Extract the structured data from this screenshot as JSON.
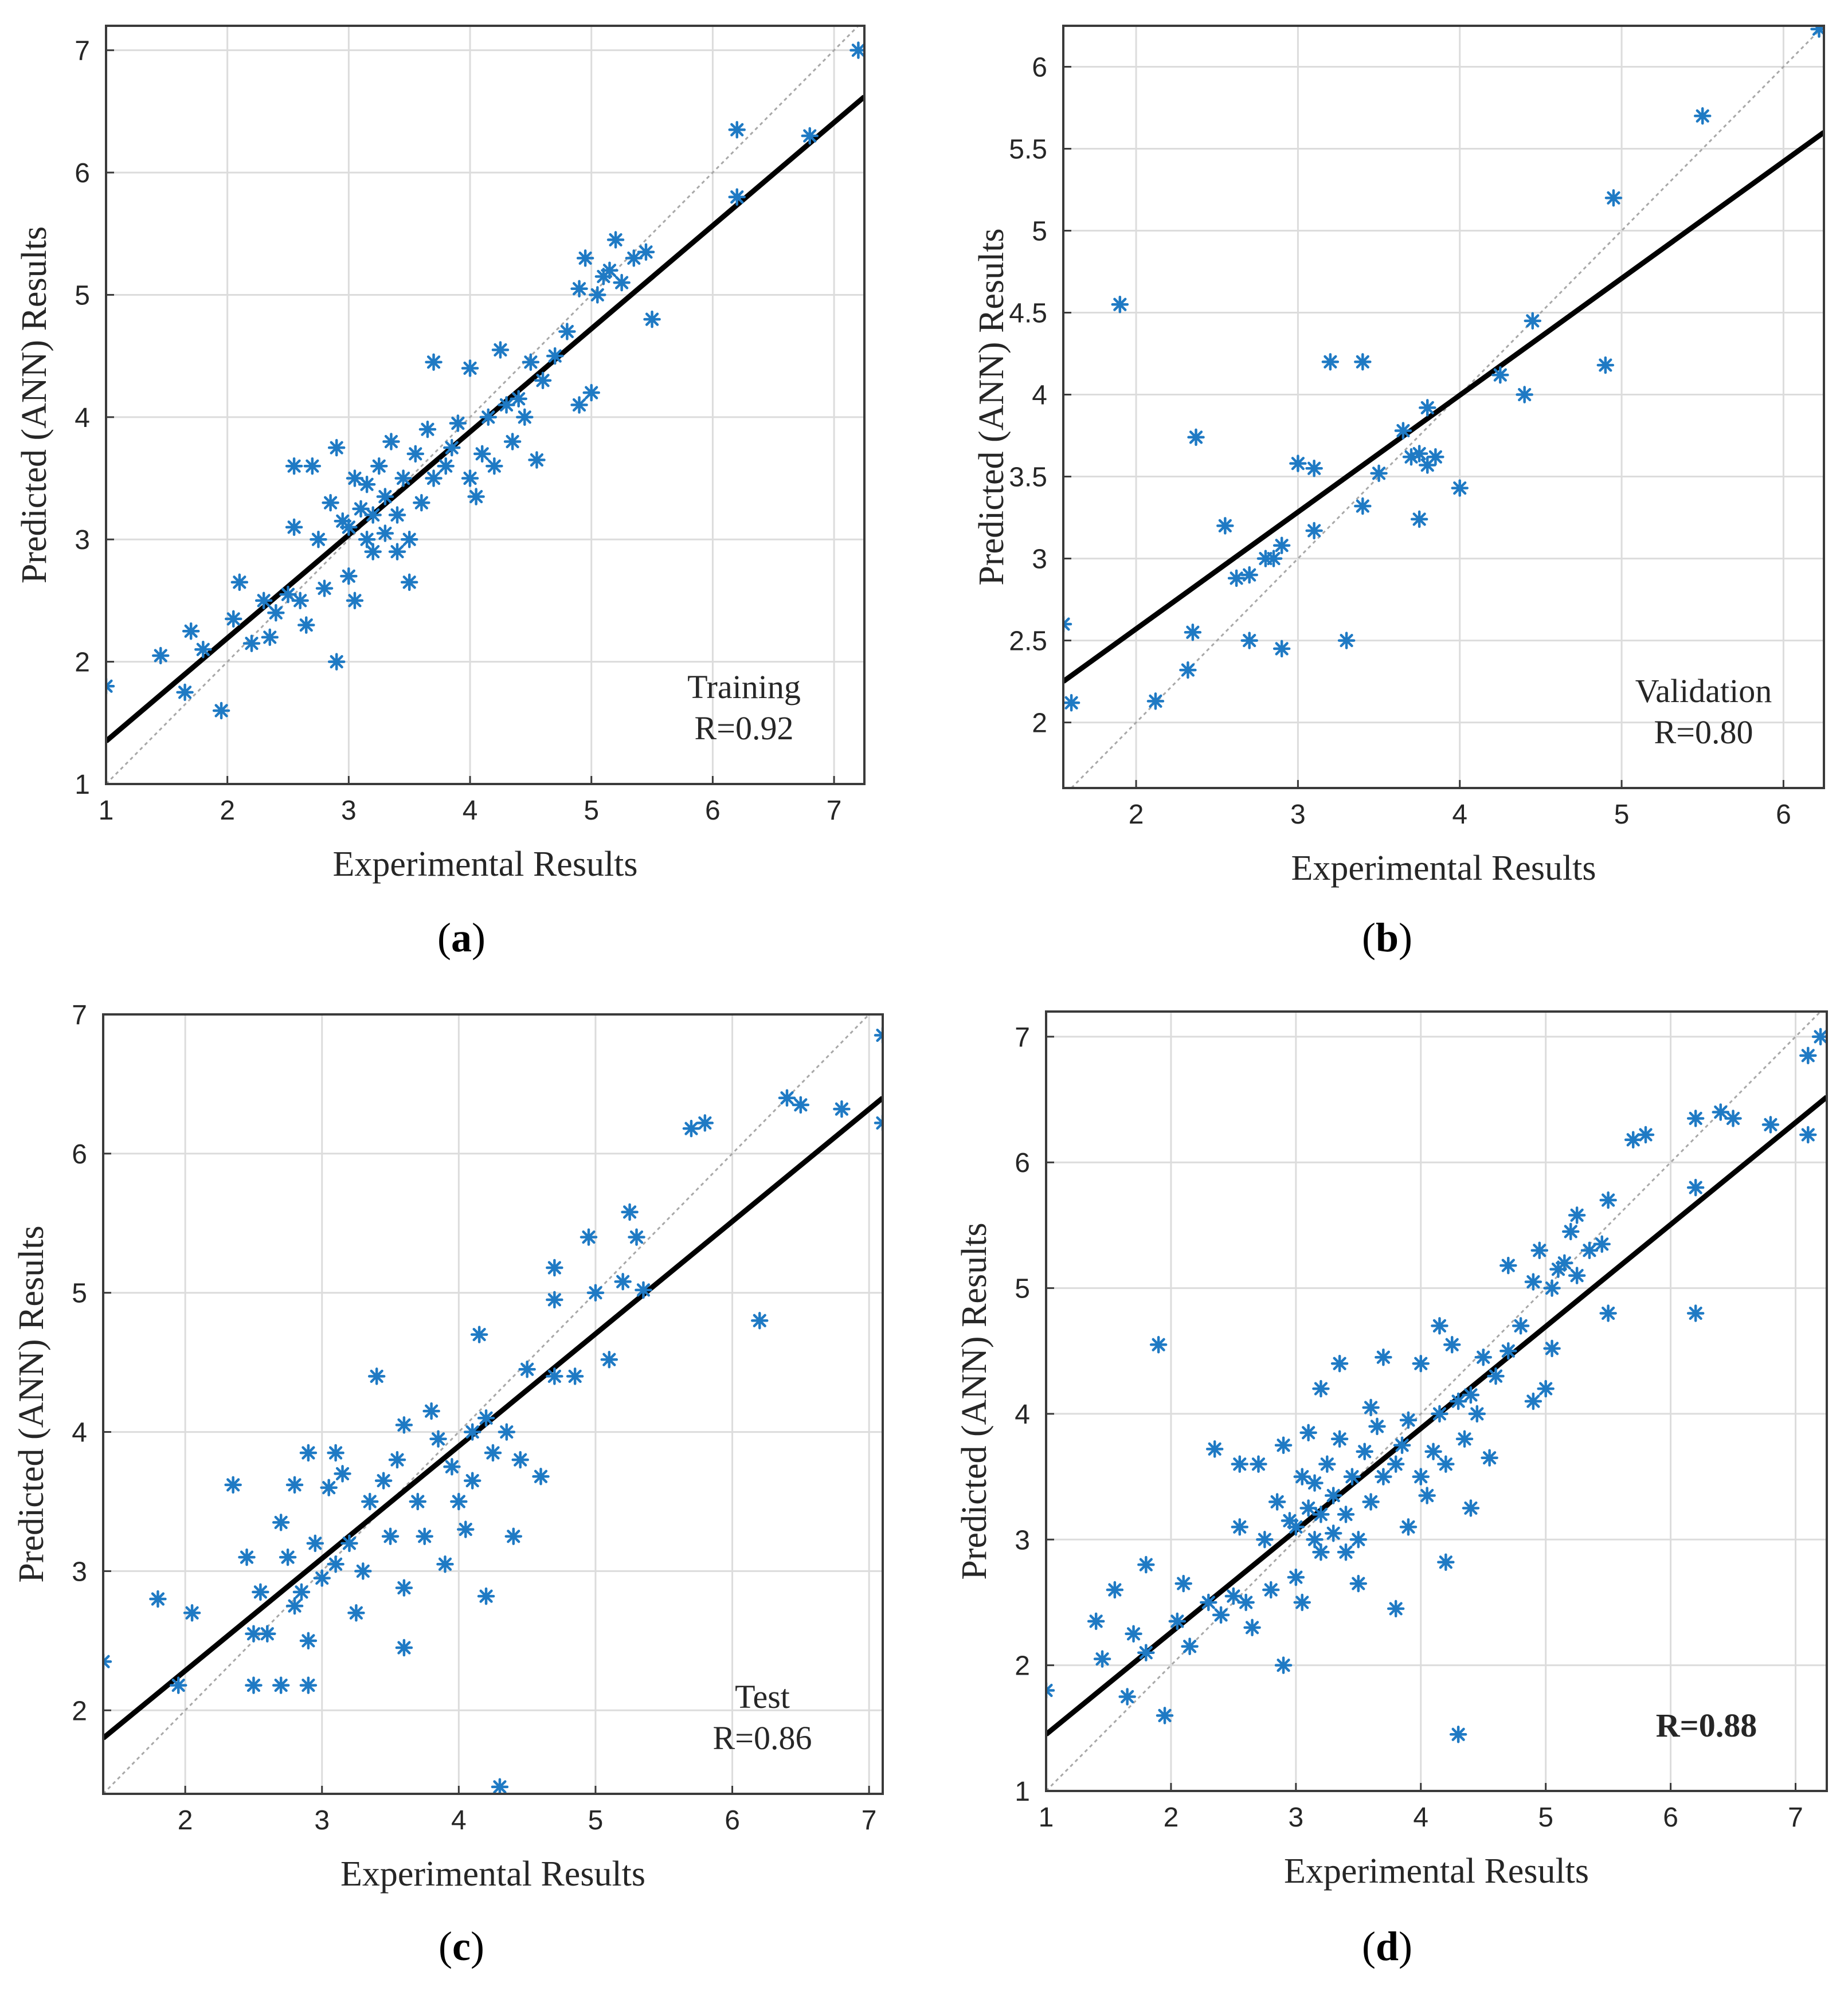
{
  "figure": {
    "panels": [
      "a",
      "b",
      "c",
      "d"
    ]
  },
  "chart_data": [
    {
      "id": "a",
      "type": "scatter",
      "caption_letter": "a",
      "annotation": [
        "Training",
        "R=0.92"
      ],
      "annotation_bold": false,
      "xlabel": "Experimental Results",
      "ylabel": "Predicted (ANN) Results",
      "xlim": [
        1,
        7.25
      ],
      "ylim": [
        1,
        7.2
      ],
      "xticks": [
        1,
        2,
        3,
        4,
        5,
        6,
        7
      ],
      "yticks": [
        1,
        2,
        3,
        4,
        5,
        6,
        7
      ],
      "grid": true,
      "fit_line": {
        "x": [
          1,
          7.25
        ],
        "y": [
          1.35,
          6.62
        ]
      },
      "ideal_line": true,
      "marker_color": "#1f7ac4",
      "points": [
        [
          1.0,
          1.8
        ],
        [
          1.45,
          2.05
        ],
        [
          1.65,
          1.75
        ],
        [
          1.7,
          2.25
        ],
        [
          1.8,
          2.1
        ],
        [
          1.95,
          1.6
        ],
        [
          2.05,
          2.35
        ],
        [
          2.1,
          2.65
        ],
        [
          2.2,
          2.15
        ],
        [
          2.3,
          2.5
        ],
        [
          2.35,
          2.2
        ],
        [
          2.4,
          2.4
        ],
        [
          2.5,
          2.55
        ],
        [
          2.55,
          3.6
        ],
        [
          2.55,
          3.1
        ],
        [
          2.6,
          2.5
        ],
        [
          2.65,
          2.3
        ],
        [
          2.7,
          3.6
        ],
        [
          2.75,
          3.0
        ],
        [
          2.8,
          2.6
        ],
        [
          2.85,
          3.3
        ],
        [
          2.9,
          2.0
        ],
        [
          2.9,
          3.75
        ],
        [
          2.95,
          3.15
        ],
        [
          3.0,
          2.7
        ],
        [
          3.0,
          3.1
        ],
        [
          3.05,
          3.5
        ],
        [
          3.05,
          2.5
        ],
        [
          3.1,
          3.25
        ],
        [
          3.15,
          3.45
        ],
        [
          3.15,
          3.0
        ],
        [
          3.2,
          3.2
        ],
        [
          3.2,
          2.9
        ],
        [
          3.25,
          3.6
        ],
        [
          3.3,
          3.35
        ],
        [
          3.3,
          3.05
        ],
        [
          3.35,
          3.8
        ],
        [
          3.4,
          3.2
        ],
        [
          3.4,
          2.9
        ],
        [
          3.45,
          3.5
        ],
        [
          3.5,
          3.0
        ],
        [
          3.5,
          2.65
        ],
        [
          3.55,
          3.7
        ],
        [
          3.6,
          3.3
        ],
        [
          3.65,
          3.9
        ],
        [
          3.7,
          4.45
        ],
        [
          3.7,
          3.5
        ],
        [
          3.8,
          3.6
        ],
        [
          3.85,
          3.75
        ],
        [
          3.9,
          3.95
        ],
        [
          4.0,
          4.4
        ],
        [
          4.0,
          3.5
        ],
        [
          4.05,
          3.35
        ],
        [
          4.1,
          3.7
        ],
        [
          4.15,
          4.0
        ],
        [
          4.2,
          3.6
        ],
        [
          4.25,
          4.55
        ],
        [
          4.3,
          4.1
        ],
        [
          4.35,
          3.8
        ],
        [
          4.4,
          4.15
        ],
        [
          4.45,
          4.0
        ],
        [
          4.5,
          4.45
        ],
        [
          4.55,
          3.65
        ],
        [
          4.6,
          4.3
        ],
        [
          4.7,
          4.5
        ],
        [
          4.8,
          4.7
        ],
        [
          4.9,
          4.1
        ],
        [
          4.9,
          5.05
        ],
        [
          4.95,
          5.3
        ],
        [
          5.0,
          4.2
        ],
        [
          5.05,
          5.0
        ],
        [
          5.1,
          5.15
        ],
        [
          5.15,
          5.2
        ],
        [
          5.2,
          5.45
        ],
        [
          5.25,
          5.1
        ],
        [
          5.35,
          5.3
        ],
        [
          5.45,
          5.35
        ],
        [
          5.5,
          4.8
        ],
        [
          6.2,
          6.35
        ],
        [
          6.2,
          5.8
        ],
        [
          6.8,
          6.3
        ],
        [
          7.2,
          7.0
        ]
      ]
    },
    {
      "id": "b",
      "type": "scatter",
      "caption_letter": "b",
      "annotation": [
        "Validation",
        "R=0.80"
      ],
      "annotation_bold": false,
      "xlabel": "Experimental Results",
      "ylabel": "Predicted (ANN) Results",
      "xlim": [
        1.55,
        6.25
      ],
      "ylim": [
        1.6,
        6.25
      ],
      "xticks": [
        2,
        3,
        4,
        5,
        6
      ],
      "yticks": [
        2,
        2.5,
        3,
        3.5,
        4,
        4.5,
        5,
        5.5,
        6
      ],
      "grid": true,
      "fit_line": {
        "x": [
          1.55,
          6.25
        ],
        "y": [
          2.25,
          5.6
        ]
      },
      "ideal_line": true,
      "marker_color": "#1f7ac4",
      "points": [
        [
          1.55,
          2.6
        ],
        [
          1.6,
          2.12
        ],
        [
          1.9,
          4.55
        ],
        [
          2.12,
          2.13
        ],
        [
          2.32,
          2.32
        ],
        [
          2.35,
          2.55
        ],
        [
          2.37,
          3.74
        ],
        [
          2.55,
          3.2
        ],
        [
          2.62,
          2.88
        ],
        [
          2.7,
          2.5
        ],
        [
          2.7,
          2.9
        ],
        [
          2.8,
          3.0
        ],
        [
          2.85,
          3.0
        ],
        [
          2.9,
          3.08
        ],
        [
          2.9,
          2.45
        ],
        [
          3.0,
          3.58
        ],
        [
          3.1,
          3.55
        ],
        [
          3.1,
          3.17
        ],
        [
          3.2,
          4.2
        ],
        [
          3.3,
          2.5
        ],
        [
          3.4,
          4.2
        ],
        [
          3.4,
          3.32
        ],
        [
          3.5,
          3.52
        ],
        [
          3.65,
          3.78
        ],
        [
          3.7,
          3.62
        ],
        [
          3.75,
          3.64
        ],
        [
          3.75,
          3.24
        ],
        [
          3.8,
          3.57
        ],
        [
          3.8,
          3.92
        ],
        [
          3.85,
          3.62
        ],
        [
          4.0,
          3.43
        ],
        [
          4.25,
          4.12
        ],
        [
          4.4,
          4.0
        ],
        [
          4.45,
          4.45
        ],
        [
          4.9,
          4.18
        ],
        [
          4.95,
          5.2
        ],
        [
          5.5,
          5.7
        ],
        [
          6.22,
          6.23
        ]
      ]
    },
    {
      "id": "c",
      "type": "scatter",
      "caption_letter": "c",
      "annotation": [
        "Test",
        "R=0.86"
      ],
      "annotation_bold": false,
      "xlabel": "Experimental Results",
      "ylabel": "Predicted (ANN) Results",
      "xlim": [
        1.4,
        7.1
      ],
      "ylim": [
        1.4,
        7.0
      ],
      "xticks": [
        2,
        3,
        4,
        5,
        6,
        7
      ],
      "yticks": [
        2,
        3,
        4,
        5,
        6,
        7
      ],
      "grid": true,
      "fit_line": {
        "x": [
          1.4,
          7.1
        ],
        "y": [
          1.8,
          6.4
        ]
      },
      "ideal_line": true,
      "marker_color": "#1f7ac4",
      "points": [
        [
          1.4,
          2.35
        ],
        [
          1.8,
          2.8
        ],
        [
          1.95,
          2.18
        ],
        [
          2.05,
          2.7
        ],
        [
          2.35,
          3.62
        ],
        [
          2.45,
          3.1
        ],
        [
          2.5,
          2.55
        ],
        [
          2.5,
          2.18
        ],
        [
          2.55,
          2.85
        ],
        [
          2.6,
          2.55
        ],
        [
          2.7,
          3.35
        ],
        [
          2.7,
          2.18
        ],
        [
          2.75,
          3.1
        ],
        [
          2.8,
          3.62
        ],
        [
          2.8,
          2.75
        ],
        [
          2.85,
          2.85
        ],
        [
          2.9,
          3.85
        ],
        [
          2.9,
          2.5
        ],
        [
          2.9,
          2.18
        ],
        [
          2.95,
          3.2
        ],
        [
          3.0,
          2.95
        ],
        [
          3.05,
          3.6
        ],
        [
          3.1,
          3.85
        ],
        [
          3.1,
          3.05
        ],
        [
          3.15,
          3.7
        ],
        [
          3.2,
          3.2
        ],
        [
          3.25,
          2.7
        ],
        [
          3.3,
          3.0
        ],
        [
          3.35,
          3.5
        ],
        [
          3.4,
          4.4
        ],
        [
          3.45,
          3.65
        ],
        [
          3.5,
          3.25
        ],
        [
          3.55,
          3.8
        ],
        [
          3.6,
          4.05
        ],
        [
          3.6,
          2.88
        ],
        [
          3.6,
          2.45
        ],
        [
          3.7,
          3.5
        ],
        [
          3.75,
          3.25
        ],
        [
          3.8,
          4.15
        ],
        [
          3.85,
          3.95
        ],
        [
          3.9,
          3.05
        ],
        [
          3.95,
          3.75
        ],
        [
          4.0,
          3.5
        ],
        [
          4.05,
          3.3
        ],
        [
          4.1,
          4.0
        ],
        [
          4.1,
          3.65
        ],
        [
          4.15,
          4.7
        ],
        [
          4.2,
          4.1
        ],
        [
          4.2,
          2.82
        ],
        [
          4.25,
          3.85
        ],
        [
          4.3,
          1.45
        ],
        [
          4.35,
          4.0
        ],
        [
          4.4,
          3.25
        ],
        [
          4.45,
          3.8
        ],
        [
          4.5,
          4.45
        ],
        [
          4.6,
          3.68
        ],
        [
          4.7,
          5.18
        ],
        [
          4.7,
          4.95
        ],
        [
          4.7,
          4.4
        ],
        [
          4.85,
          4.4
        ],
        [
          4.95,
          5.4
        ],
        [
          5.0,
          5.0
        ],
        [
          5.1,
          4.52
        ],
        [
          5.2,
          5.08
        ],
        [
          5.25,
          5.58
        ],
        [
          5.3,
          5.4
        ],
        [
          5.35,
          5.02
        ],
        [
          5.7,
          6.18
        ],
        [
          5.8,
          6.22
        ],
        [
          6.2,
          4.8
        ],
        [
          6.4,
          6.4
        ],
        [
          6.5,
          6.35
        ],
        [
          6.8,
          6.32
        ],
        [
          7.1,
          6.85
        ],
        [
          7.1,
          6.22
        ]
      ]
    },
    {
      "id": "d",
      "type": "scatter",
      "caption_letter": "d",
      "annotation": [
        "R=0.88"
      ],
      "annotation_bold": true,
      "xlabel": "Experimental Results",
      "ylabel": "Predicted (ANN) Results",
      "xlim": [
        1,
        7.25
      ],
      "ylim": [
        1,
        7.2
      ],
      "xticks": [
        1,
        2,
        3,
        4,
        5,
        6,
        7
      ],
      "yticks": [
        1,
        2,
        3,
        4,
        5,
        6,
        7
      ],
      "grid": true,
      "fit_line": {
        "x": [
          1,
          7.25
        ],
        "y": [
          1.45,
          6.52
        ]
      },
      "ideal_line": true,
      "marker_color": "#1f7ac4",
      "points": [
        [
          1.0,
          1.8
        ],
        [
          1.4,
          2.35
        ],
        [
          1.45,
          2.05
        ],
        [
          1.55,
          2.6
        ],
        [
          1.65,
          1.75
        ],
        [
          1.7,
          2.25
        ],
        [
          1.8,
          2.8
        ],
        [
          1.8,
          2.1
        ],
        [
          1.9,
          4.55
        ],
        [
          1.95,
          1.6
        ],
        [
          2.05,
          2.35
        ],
        [
          2.1,
          2.65
        ],
        [
          2.15,
          2.15
        ],
        [
          2.3,
          2.5
        ],
        [
          2.35,
          3.72
        ],
        [
          2.4,
          2.4
        ],
        [
          2.5,
          2.55
        ],
        [
          2.55,
          3.1
        ],
        [
          2.55,
          3.6
        ],
        [
          2.6,
          2.5
        ],
        [
          2.65,
          2.3
        ],
        [
          2.7,
          3.6
        ],
        [
          2.75,
          3.0
        ],
        [
          2.8,
          2.6
        ],
        [
          2.85,
          3.3
        ],
        [
          2.9,
          2.0
        ],
        [
          2.9,
          3.75
        ],
        [
          2.95,
          3.15
        ],
        [
          3.0,
          2.7
        ],
        [
          3.0,
          3.1
        ],
        [
          3.05,
          3.5
        ],
        [
          3.05,
          2.5
        ],
        [
          3.1,
          3.25
        ],
        [
          3.1,
          3.85
        ],
        [
          3.15,
          3.45
        ],
        [
          3.15,
          3.0
        ],
        [
          3.2,
          3.2
        ],
        [
          3.2,
          4.2
        ],
        [
          3.2,
          2.9
        ],
        [
          3.25,
          3.6
        ],
        [
          3.3,
          3.35
        ],
        [
          3.3,
          3.05
        ],
        [
          3.35,
          3.8
        ],
        [
          3.35,
          4.4
        ],
        [
          3.4,
          3.2
        ],
        [
          3.4,
          2.9
        ],
        [
          3.45,
          3.5
        ],
        [
          3.5,
          3.0
        ],
        [
          3.5,
          2.65
        ],
        [
          3.55,
          3.7
        ],
        [
          3.6,
          3.3
        ],
        [
          3.6,
          4.05
        ],
        [
          3.65,
          3.9
        ],
        [
          3.7,
          4.45
        ],
        [
          3.7,
          3.5
        ],
        [
          3.8,
          3.6
        ],
        [
          3.8,
          2.45
        ],
        [
          3.85,
          3.75
        ],
        [
          3.9,
          3.95
        ],
        [
          3.9,
          3.1
        ],
        [
          4.0,
          4.4
        ],
        [
          4.0,
          3.5
        ],
        [
          4.05,
          3.35
        ],
        [
          4.1,
          3.7
        ],
        [
          4.15,
          4.0
        ],
        [
          4.15,
          4.7
        ],
        [
          4.2,
          3.6
        ],
        [
          4.2,
          2.82
        ],
        [
          4.25,
          4.55
        ],
        [
          4.3,
          4.1
        ],
        [
          4.3,
          1.45
        ],
        [
          4.35,
          3.8
        ],
        [
          4.4,
          4.15
        ],
        [
          4.4,
          3.25
        ],
        [
          4.45,
          4.0
        ],
        [
          4.5,
          4.45
        ],
        [
          4.55,
          3.65
        ],
        [
          4.6,
          4.3
        ],
        [
          4.7,
          4.5
        ],
        [
          4.7,
          5.18
        ],
        [
          4.8,
          4.7
        ],
        [
          4.9,
          4.1
        ],
        [
          4.9,
          5.05
        ],
        [
          4.95,
          5.3
        ],
        [
          5.0,
          4.2
        ],
        [
          5.05,
          5.0
        ],
        [
          5.05,
          4.52
        ],
        [
          5.1,
          5.15
        ],
        [
          5.15,
          5.2
        ],
        [
          5.2,
          5.45
        ],
        [
          5.25,
          5.58
        ],
        [
          5.25,
          5.1
        ],
        [
          5.35,
          5.3
        ],
        [
          5.45,
          5.35
        ],
        [
          5.5,
          4.8
        ],
        [
          5.5,
          5.7
        ],
        [
          5.7,
          6.18
        ],
        [
          5.8,
          6.22
        ],
        [
          6.2,
          6.35
        ],
        [
          6.2,
          5.8
        ],
        [
          6.2,
          4.8
        ],
        [
          6.4,
          6.4
        ],
        [
          6.5,
          6.35
        ],
        [
          6.8,
          6.3
        ],
        [
          7.1,
          6.85
        ],
        [
          7.1,
          6.22
        ],
        [
          7.2,
          7.0
        ]
      ]
    }
  ]
}
